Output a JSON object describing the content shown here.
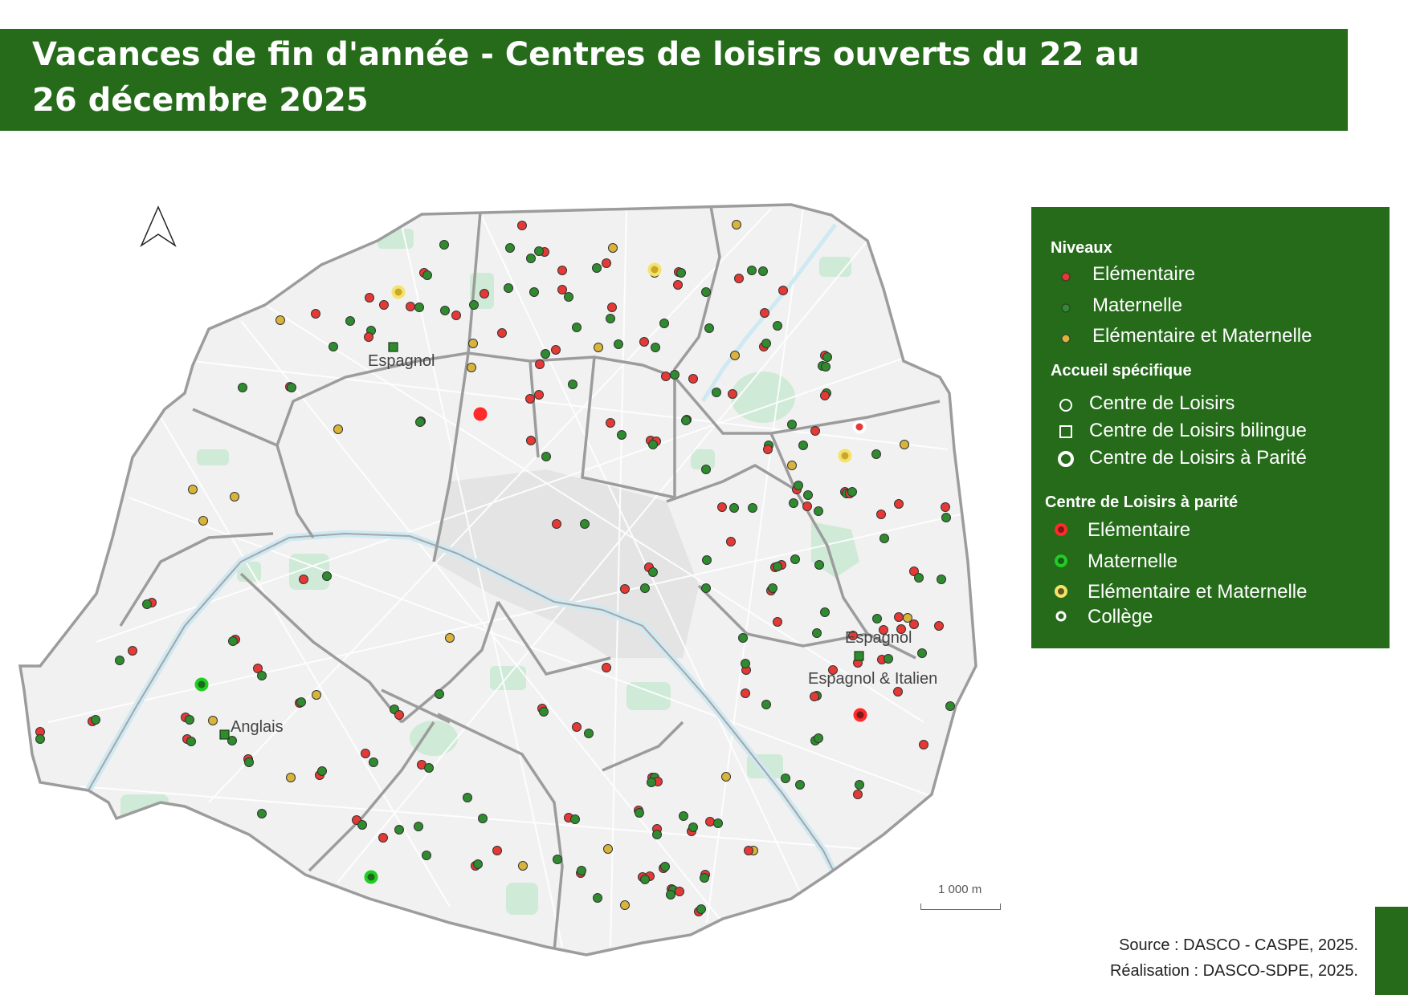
{
  "title": "Vacances de fin d'année - Centres de loisirs ouverts du 22 au 26 décembre 2025",
  "legend": {
    "niveaux_heading": "Niveaux",
    "niveaux": [
      {
        "label": "Elémentaire",
        "color": "#e53935"
      },
      {
        "label": "Maternelle",
        "color": "#2e8b2e"
      },
      {
        "label": "Elémentaire et Maternelle",
        "color": "#d9b43a"
      }
    ],
    "accueil_heading": "Accueil spécifique",
    "accueil": [
      {
        "label": "Centre de Loisirs",
        "shape": "circle-outline-icon"
      },
      {
        "label": "Centre de Loisirs bilingue",
        "shape": "square-outline-icon"
      },
      {
        "label": "Centre de Loisirs à Parité",
        "shape": "thick-ring-icon"
      }
    ],
    "parite_heading": "Centre de Loisirs à parité",
    "parite": [
      {
        "label": "Elémentaire",
        "color": "#ff2a2a"
      },
      {
        "label": "Maternelle",
        "color": "#22cc22"
      },
      {
        "label": "Elémentaire et Maternelle",
        "color": "#f5e26a"
      },
      {
        "label": "Collège",
        "color": "#ffffff"
      }
    ]
  },
  "map_labels": {
    "espagnol_north": "Espagnol",
    "espagnol_east": "Espagnol",
    "espagnol_italien": "Espagnol & Italien",
    "anglais": "Anglais"
  },
  "scale_label": "1 000 m",
  "source": "Source : DASCO - CASPE, 2025.",
  "realisation": "Réalisation : DASCO-SDPE, 2025.",
  "colors": {
    "brand_green": "#256b1a",
    "map_land": "#f1f1f1",
    "park": "#cfead7",
    "river": "#cfe9f3",
    "border": "#9a9a9a"
  }
}
